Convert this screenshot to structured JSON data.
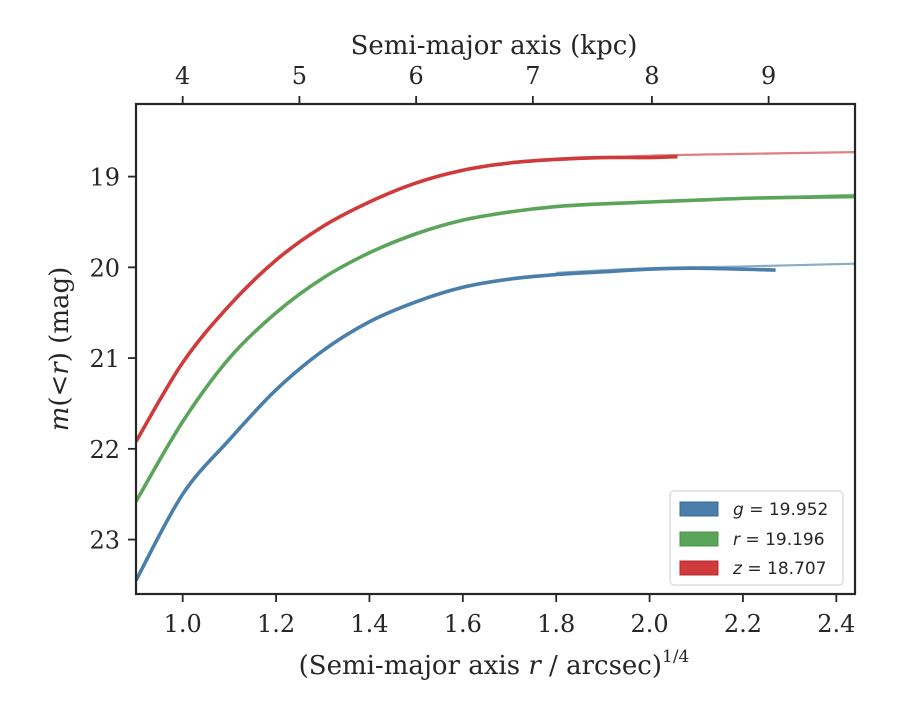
{
  "chart_data": {
    "type": "line",
    "xlabel_main": "(Semi-major axis ",
    "xlabel_var": "r",
    "xlabel_tail": " / arcsec)",
    "xlabel_sup": "1/4",
    "ylabel_main": "m",
    "ylabel_paren": "(<",
    "ylabel_var": "r",
    "ylabel_close": ")",
    "ylabel_unit": " (mag)",
    "top_xlabel": "Semi-major axis (kpc)",
    "xlim": [
      0.9,
      2.44
    ],
    "ylim": [
      23.6,
      18.2
    ],
    "y_inverted": true,
    "x_ticks": [
      1.0,
      1.2,
      1.4,
      1.6,
      1.8,
      2.0,
      2.2,
      2.4
    ],
    "x_tick_labels": [
      "1.0",
      "1.2",
      "1.4",
      "1.6",
      "1.8",
      "2.0",
      "2.2",
      "2.4"
    ],
    "y_ticks": [
      19,
      20,
      21,
      22,
      23
    ],
    "y_tick_labels": [
      "19",
      "20",
      "21",
      "22",
      "23"
    ],
    "top_ticks_kpc": [
      4,
      5,
      6,
      7,
      8,
      9
    ],
    "top_tick_labels": [
      "4",
      "5",
      "6",
      "7",
      "8",
      "9"
    ],
    "top_tick_positions_x": [
      1.0,
      1.25,
      1.5,
      1.75,
      2.005,
      2.255
    ],
    "grid": false,
    "legend_position": "bottom-right",
    "series": [
      {
        "name": "g = 19.952",
        "legend_var": "g",
        "legend_value": "19.952",
        "color": "#4a7eab",
        "x": [
          0.9,
          1.0,
          1.1,
          1.2,
          1.3,
          1.4,
          1.5,
          1.6,
          1.7,
          1.8,
          1.9,
          2.0,
          2.1,
          2.27
        ],
        "y": [
          23.45,
          22.5,
          21.9,
          21.35,
          20.92,
          20.6,
          20.38,
          20.22,
          20.13,
          20.08,
          20.05,
          20.02,
          20.01,
          20.03
        ],
        "model_x": [
          1.8,
          2.0,
          2.2,
          2.44
        ],
        "model_y": [
          20.06,
          20.01,
          19.99,
          19.96
        ]
      },
      {
        "name": "r = 19.196",
        "legend_var": "r",
        "legend_value": "19.196",
        "color": "#5aa55a",
        "x": [
          0.9,
          1.0,
          1.1,
          1.2,
          1.3,
          1.4,
          1.5,
          1.6,
          1.7,
          1.8,
          1.9,
          2.0,
          2.1,
          2.2,
          2.3,
          2.44
        ],
        "y": [
          22.58,
          21.7,
          21.0,
          20.5,
          20.12,
          19.84,
          19.63,
          19.48,
          19.39,
          19.33,
          19.3,
          19.28,
          19.26,
          19.24,
          19.23,
          19.22
        ],
        "model_x": [
          1.8,
          2.0,
          2.2,
          2.44
        ],
        "model_y": [
          19.33,
          19.28,
          19.24,
          19.2
        ]
      },
      {
        "name": "z = 18.707",
        "legend_var": "z",
        "legend_value": "18.707",
        "color": "#d03a3a",
        "x": [
          0.9,
          1.0,
          1.1,
          1.2,
          1.3,
          1.4,
          1.5,
          1.6,
          1.7,
          1.8,
          1.9,
          2.0,
          2.06
        ],
        "y": [
          21.92,
          21.05,
          20.42,
          19.92,
          19.55,
          19.28,
          19.07,
          18.93,
          18.85,
          18.81,
          18.79,
          18.79,
          18.78
        ],
        "model_x": [
          1.8,
          2.0,
          2.2,
          2.44
        ],
        "model_y": [
          18.82,
          18.77,
          18.75,
          18.73
        ]
      }
    ]
  }
}
